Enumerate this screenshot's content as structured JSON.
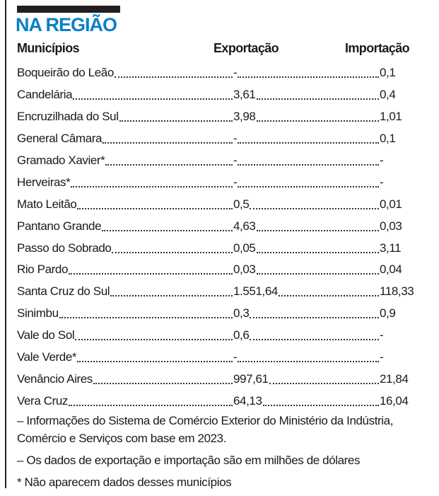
{
  "title": "NA REGIÃO",
  "headers": {
    "municipios": "Municípios",
    "exportacao": "Exportação",
    "importacao": "Importação"
  },
  "rows": [
    {
      "name": "Boqueirão do Leão",
      "exp": "-",
      "imp": "0,1"
    },
    {
      "name": "Candelária",
      "exp": "3,61",
      "imp": "0,4"
    },
    {
      "name": "Encruzilhada do Sul",
      "exp": "3,98",
      "imp": "1,01"
    },
    {
      "name": "General Câmara",
      "exp": "-",
      "imp": "0,1"
    },
    {
      "name": "Gramado Xavier*",
      "exp": "-",
      "imp": "-"
    },
    {
      "name": "Herveiras*",
      "exp": "-",
      "imp": "-"
    },
    {
      "name": "Mato Leitão",
      "exp": "0,5",
      "imp": "0,01"
    },
    {
      "name": "Pantano Grande",
      "exp": "4,63",
      "imp": "0,03"
    },
    {
      "name": "Passo do Sobrado",
      "exp": "0,05",
      "imp": "3,11"
    },
    {
      "name": "Rio Pardo",
      "exp": "0,03",
      "imp": "0,04"
    },
    {
      "name": "Santa Cruz do Sul",
      "exp": "1.551,64",
      "imp": "118,33"
    },
    {
      "name": "Sinimbu",
      "exp": "0,3",
      "imp": "0,9"
    },
    {
      "name": "Vale do Sol",
      "exp": "0,6",
      "imp": "-"
    },
    {
      "name": "Vale Verde*",
      "exp": "-",
      "imp": "-"
    },
    {
      "name": "Venâncio Aires",
      "exp": "997,61",
      "imp": "21,84"
    },
    {
      "name": "Vera Cruz",
      "exp": "64,13",
      "imp": "16,04"
    }
  ],
  "notes": [
    "– Informações do Sistema de Comércio Exterior do Ministério da Indústria, Comércio e Serviços com base em 2023.",
    "– Os dados de exportação e importação são em milhões de dólares",
    "* Não aparecem dados desses municípios"
  ]
}
